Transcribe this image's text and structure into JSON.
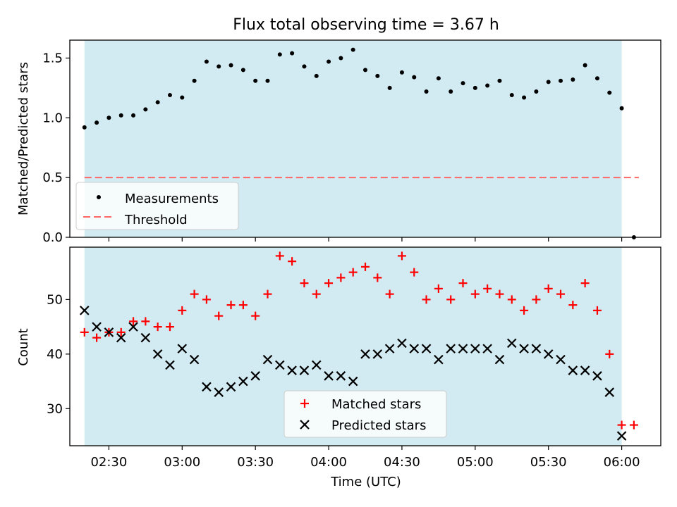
{
  "title": "Flux total observing time = 3.67 h",
  "xlabel": "Time (UTC)",
  "x_ticks": [
    "02:30",
    "03:00",
    "03:30",
    "04:00",
    "04:30",
    "05:00",
    "05:30",
    "06:00"
  ],
  "colors": {
    "shade": "#add8e6",
    "measurement": "#000000",
    "threshold": "#ff6666",
    "matched": "#ff0000",
    "predicted": "#000000"
  },
  "chart_data": [
    {
      "type": "scatter",
      "ylabel": "Matched/Predicted stars",
      "xlim": [
        "02:14",
        "06:16"
      ],
      "ylim": [
        0,
        1.65
      ],
      "yticks": [
        "0.0",
        "0.5",
        "1.0",
        "1.5"
      ],
      "shaded_span": [
        "02:20",
        "06:00"
      ],
      "legend": {
        "location": "lower-left",
        "entries": [
          "Measurements",
          "Threshold"
        ]
      },
      "series": [
        {
          "name": "Measurements",
          "marker": "dot",
          "points": [
            [
              "02:20",
              0.92
            ],
            [
              "02:25",
              0.96
            ],
            [
              "02:30",
              1.0
            ],
            [
              "02:35",
              1.02
            ],
            [
              "02:40",
              1.02
            ],
            [
              "02:45",
              1.07
            ],
            [
              "02:50",
              1.13
            ],
            [
              "02:55",
              1.19
            ],
            [
              "03:00",
              1.17
            ],
            [
              "03:05",
              1.31
            ],
            [
              "03:10",
              1.47
            ],
            [
              "03:15",
              1.43
            ],
            [
              "03:20",
              1.44
            ],
            [
              "03:25",
              1.4
            ],
            [
              "03:30",
              1.31
            ],
            [
              "03:35",
              1.31
            ],
            [
              "03:40",
              1.53
            ],
            [
              "03:45",
              1.54
            ],
            [
              "03:50",
              1.43
            ],
            [
              "03:55",
              1.35
            ],
            [
              "04:00",
              1.47
            ],
            [
              "04:05",
              1.5
            ],
            [
              "04:10",
              1.57
            ],
            [
              "04:15",
              1.4
            ],
            [
              "04:20",
              1.35
            ],
            [
              "04:25",
              1.25
            ],
            [
              "04:30",
              1.38
            ],
            [
              "04:35",
              1.34
            ],
            [
              "04:40",
              1.22
            ],
            [
              "04:45",
              1.33
            ],
            [
              "04:50",
              1.22
            ],
            [
              "04:55",
              1.29
            ],
            [
              "05:00",
              1.25
            ],
            [
              "05:05",
              1.27
            ],
            [
              "05:10",
              1.31
            ],
            [
              "05:15",
              1.19
            ],
            [
              "05:20",
              1.17
            ],
            [
              "05:25",
              1.22
            ],
            [
              "05:30",
              1.3
            ],
            [
              "05:35",
              1.31
            ],
            [
              "05:40",
              1.32
            ],
            [
              "05:45",
              1.44
            ],
            [
              "05:50",
              1.33
            ],
            [
              "05:55",
              1.21
            ],
            [
              "06:00",
              1.08
            ],
            [
              "06:05",
              0.0
            ]
          ]
        },
        {
          "name": "Threshold",
          "type": "line",
          "style": "dashed",
          "x": [
            "02:20",
            "06:07"
          ],
          "y": [
            0.5,
            0.5
          ]
        }
      ]
    },
    {
      "type": "scatter",
      "ylabel": "Count",
      "xlabel": "Time (UTC)",
      "xlim": [
        "02:14",
        "06:16"
      ],
      "ylim": [
        23.2,
        59.6
      ],
      "yticks": [
        "30",
        "40",
        "50"
      ],
      "shaded_span": [
        "02:20",
        "06:00"
      ],
      "legend": {
        "location": "lower-center",
        "entries": [
          "Matched stars",
          "Predicted stars"
        ]
      },
      "series": [
        {
          "name": "Matched stars",
          "marker": "plus",
          "points": [
            [
              "02:20",
              44
            ],
            [
              "02:25",
              43
            ],
            [
              "02:30",
              44
            ],
            [
              "02:35",
              44
            ],
            [
              "02:40",
              46
            ],
            [
              "02:45",
              46
            ],
            [
              "02:50",
              45
            ],
            [
              "02:55",
              45
            ],
            [
              "03:00",
              48
            ],
            [
              "03:05",
              51
            ],
            [
              "03:10",
              50
            ],
            [
              "03:15",
              47
            ],
            [
              "03:20",
              49
            ],
            [
              "03:25",
              49
            ],
            [
              "03:30",
              47
            ],
            [
              "03:35",
              51
            ],
            [
              "03:40",
              58
            ],
            [
              "03:45",
              57
            ],
            [
              "03:50",
              53
            ],
            [
              "03:55",
              51
            ],
            [
              "04:00",
              53
            ],
            [
              "04:05",
              54
            ],
            [
              "04:10",
              55
            ],
            [
              "04:15",
              56
            ],
            [
              "04:20",
              54
            ],
            [
              "04:25",
              51
            ],
            [
              "04:30",
              58
            ],
            [
              "04:35",
              55
            ],
            [
              "04:40",
              50
            ],
            [
              "04:45",
              52
            ],
            [
              "04:50",
              50
            ],
            [
              "04:55",
              53
            ],
            [
              "05:00",
              51
            ],
            [
              "05:05",
              52
            ],
            [
              "05:10",
              51
            ],
            [
              "05:15",
              50
            ],
            [
              "05:20",
              48
            ],
            [
              "05:25",
              50
            ],
            [
              "05:30",
              52
            ],
            [
              "05:35",
              51
            ],
            [
              "05:40",
              49
            ],
            [
              "05:45",
              53
            ],
            [
              "05:50",
              48
            ],
            [
              "05:55",
              40
            ],
            [
              "06:00",
              27
            ],
            [
              "06:05",
              27
            ]
          ]
        },
        {
          "name": "Predicted stars",
          "marker": "x",
          "points": [
            [
              "02:20",
              48
            ],
            [
              "02:25",
              45
            ],
            [
              "02:30",
              44
            ],
            [
              "02:35",
              43
            ],
            [
              "02:40",
              45
            ],
            [
              "02:45",
              43
            ],
            [
              "02:50",
              40
            ],
            [
              "02:55",
              38
            ],
            [
              "03:00",
              41
            ],
            [
              "03:05",
              39
            ],
            [
              "03:10",
              34
            ],
            [
              "03:15",
              33
            ],
            [
              "03:20",
              34
            ],
            [
              "03:25",
              35
            ],
            [
              "03:30",
              36
            ],
            [
              "03:35",
              39
            ],
            [
              "03:40",
              38
            ],
            [
              "03:45",
              37
            ],
            [
              "03:50",
              37
            ],
            [
              "03:55",
              38
            ],
            [
              "04:00",
              36
            ],
            [
              "04:05",
              36
            ],
            [
              "04:10",
              35
            ],
            [
              "04:15",
              40
            ],
            [
              "04:20",
              40
            ],
            [
              "04:25",
              41
            ],
            [
              "04:30",
              42
            ],
            [
              "04:35",
              41
            ],
            [
              "04:40",
              41
            ],
            [
              "04:45",
              39
            ],
            [
              "04:50",
              41
            ],
            [
              "04:55",
              41
            ],
            [
              "05:00",
              41
            ],
            [
              "05:05",
              41
            ],
            [
              "05:10",
              39
            ],
            [
              "05:15",
              42
            ],
            [
              "05:20",
              41
            ],
            [
              "05:25",
              41
            ],
            [
              "05:30",
              40
            ],
            [
              "05:35",
              39
            ],
            [
              "05:40",
              37
            ],
            [
              "05:45",
              37
            ],
            [
              "05:50",
              36
            ],
            [
              "05:55",
              33
            ],
            [
              "06:00",
              25
            ]
          ]
        }
      ]
    }
  ]
}
